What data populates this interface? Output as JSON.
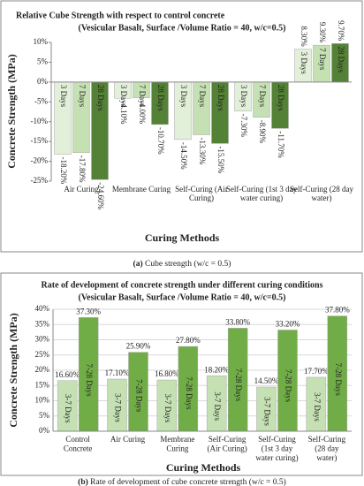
{
  "chart_data": [
    {
      "type": "bar",
      "title": [
        "Relative Cube Strength with respect to control concrete",
        "(Vesicular Basalt, Surface /Volume Ratio = 40, w/c=0.5)"
      ],
      "ylabel": "Concrete Strength (MPa)",
      "xlabel": "Curing Methods",
      "categories": [
        "Air Curing",
        "Membrane Curing",
        "Self-Curing (Air Curing)",
        "Self-Curing (1st 3 day water curing)",
        "Self-Curing (28 day water)"
      ],
      "series": [
        {
          "name": "3 Days",
          "color": "#e2efd9",
          "values": [
            -18.2,
            -4.1,
            -14.5,
            -7.3,
            8.3
          ],
          "value_labels": [
            "-18.20%",
            "-4.10%",
            "-14.50%",
            "-7.30%",
            "8.30%"
          ]
        },
        {
          "name": "7 Days",
          "color": "#c5e0b3",
          "values": [
            -17.8,
            -4.0,
            -13.3,
            -8.9,
            9.3
          ],
          "value_labels": [
            "-17.80%",
            "-4.00%",
            "-13.30%",
            "-8.90%",
            "9.30%"
          ]
        },
        {
          "name": "28 Days",
          "color": "#538135",
          "values": [
            -24.6,
            -10.7,
            -15.5,
            -11.7,
            9.7
          ],
          "value_labels": [
            "-24.60%",
            "-10.70%",
            "-15.50%",
            "-11.70%",
            "9.70%"
          ]
        }
      ],
      "ylim": [
        -25,
        10
      ],
      "yticks": [
        {
          "value": 10,
          "label": "10%"
        },
        {
          "value": 5,
          "label": "5%"
        },
        {
          "value": 0,
          "label": "0%"
        },
        {
          "value": -5,
          "label": "-5%"
        },
        {
          "value": -10,
          "label": "-10%"
        },
        {
          "value": -15,
          "label": "-15%"
        },
        {
          "value": -20,
          "label": "-20%"
        },
        {
          "value": -25,
          "label": "-25%"
        }
      ],
      "grid": false,
      "caption_label": "(a)",
      "caption": " Cube strength (w/c = 0.5)"
    },
    {
      "type": "bar",
      "title": [
        "Rate of development of concrete strength under different curing conditions",
        "(Vesicular Basalt, Surface /Volume Ratio = 40, w/c=0.5)"
      ],
      "ylabel": "Concrete Strength (MPa)",
      "xlabel": "Curing Methods",
      "categories": [
        "Control Concrete",
        "Air Curing",
        "Membrane Curing",
        "Self-Curing (Air Curing)",
        "Self-Curing (1st 3 day water curing)",
        "Self-Curing (28 day water)"
      ],
      "series": [
        {
          "name": "3-7 Days",
          "color": "#c5e0b3",
          "values": [
            16.6,
            17.1,
            16.8,
            18.2,
            14.5,
            17.7
          ],
          "value_labels": [
            "16.60%",
            "17.10%",
            "16.80%",
            "18.20%",
            "14.50%",
            "17.70%"
          ]
        },
        {
          "name": "7-28 Days",
          "color": "#70ad47",
          "values": [
            37.3,
            25.9,
            27.8,
            33.8,
            33.2,
            37.8
          ],
          "value_labels": [
            "37.30%",
            "25.90%",
            "27.80%",
            "33.80%",
            "33.20%",
            "37.80%"
          ]
        }
      ],
      "ylim": [
        0,
        40
      ],
      "yticks": [
        {
          "value": 0,
          "label": "0%"
        },
        {
          "value": 5,
          "label": "5%"
        },
        {
          "value": 10,
          "label": "10%"
        },
        {
          "value": 15,
          "label": "15%"
        },
        {
          "value": 20,
          "label": "20%"
        },
        {
          "value": 25,
          "label": "25%"
        },
        {
          "value": 30,
          "label": "30%"
        },
        {
          "value": 35,
          "label": "35%"
        },
        {
          "value": 40,
          "label": "40%"
        }
      ],
      "grid": true,
      "caption_label": "(b)",
      "caption": " Rate of development of cube concrete strength (w/c = 0.5)"
    }
  ]
}
